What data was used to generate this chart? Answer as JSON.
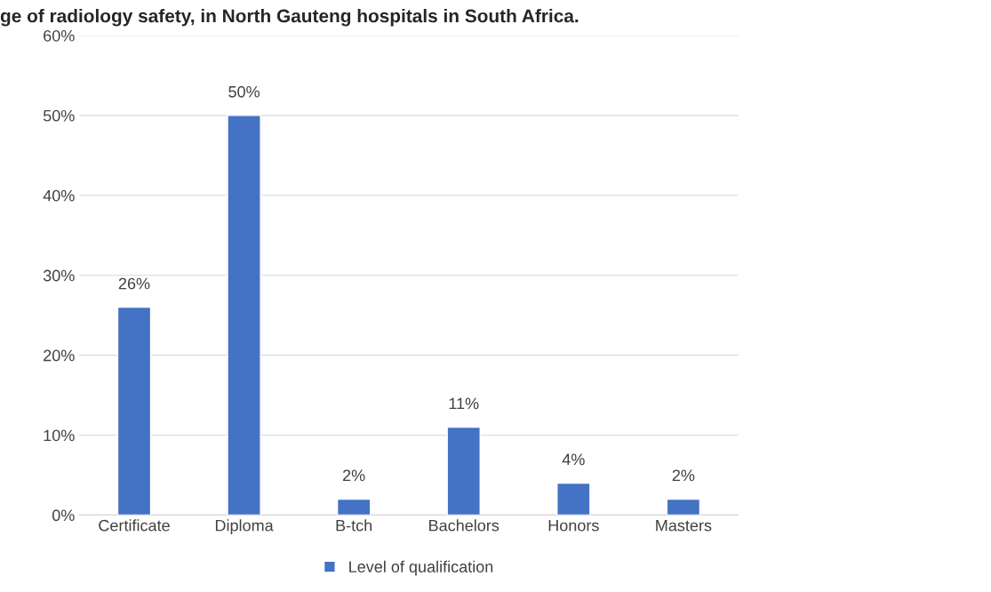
{
  "chart_data": {
    "type": "bar",
    "title": "ge of radiology safety, in North Gauteng hospitals in South Africa.",
    "categories": [
      "Certificate",
      "Diploma",
      "B-tch",
      "Bachelors",
      "Honors",
      "Masters"
    ],
    "series": [
      {
        "name": "Level of qualification",
        "color": "#4472c4",
        "values": [
          26,
          50,
          2,
          11,
          4,
          2
        ]
      }
    ],
    "value_labels": [
      "26%",
      "50%",
      "2%",
      "11%",
      "4%",
      "2%"
    ],
    "ylim": [
      0,
      60
    ],
    "yticks": [
      {
        "value": 0,
        "label": "0%"
      },
      {
        "value": 10,
        "label": "10%"
      },
      {
        "value": 20,
        "label": "20%"
      },
      {
        "value": 30,
        "label": "30%"
      },
      {
        "value": 40,
        "label": "40%"
      },
      {
        "value": 50,
        "label": "50%"
      },
      {
        "value": 60,
        "label": "60%"
      }
    ],
    "grid": "y",
    "legend": "bottom"
  }
}
